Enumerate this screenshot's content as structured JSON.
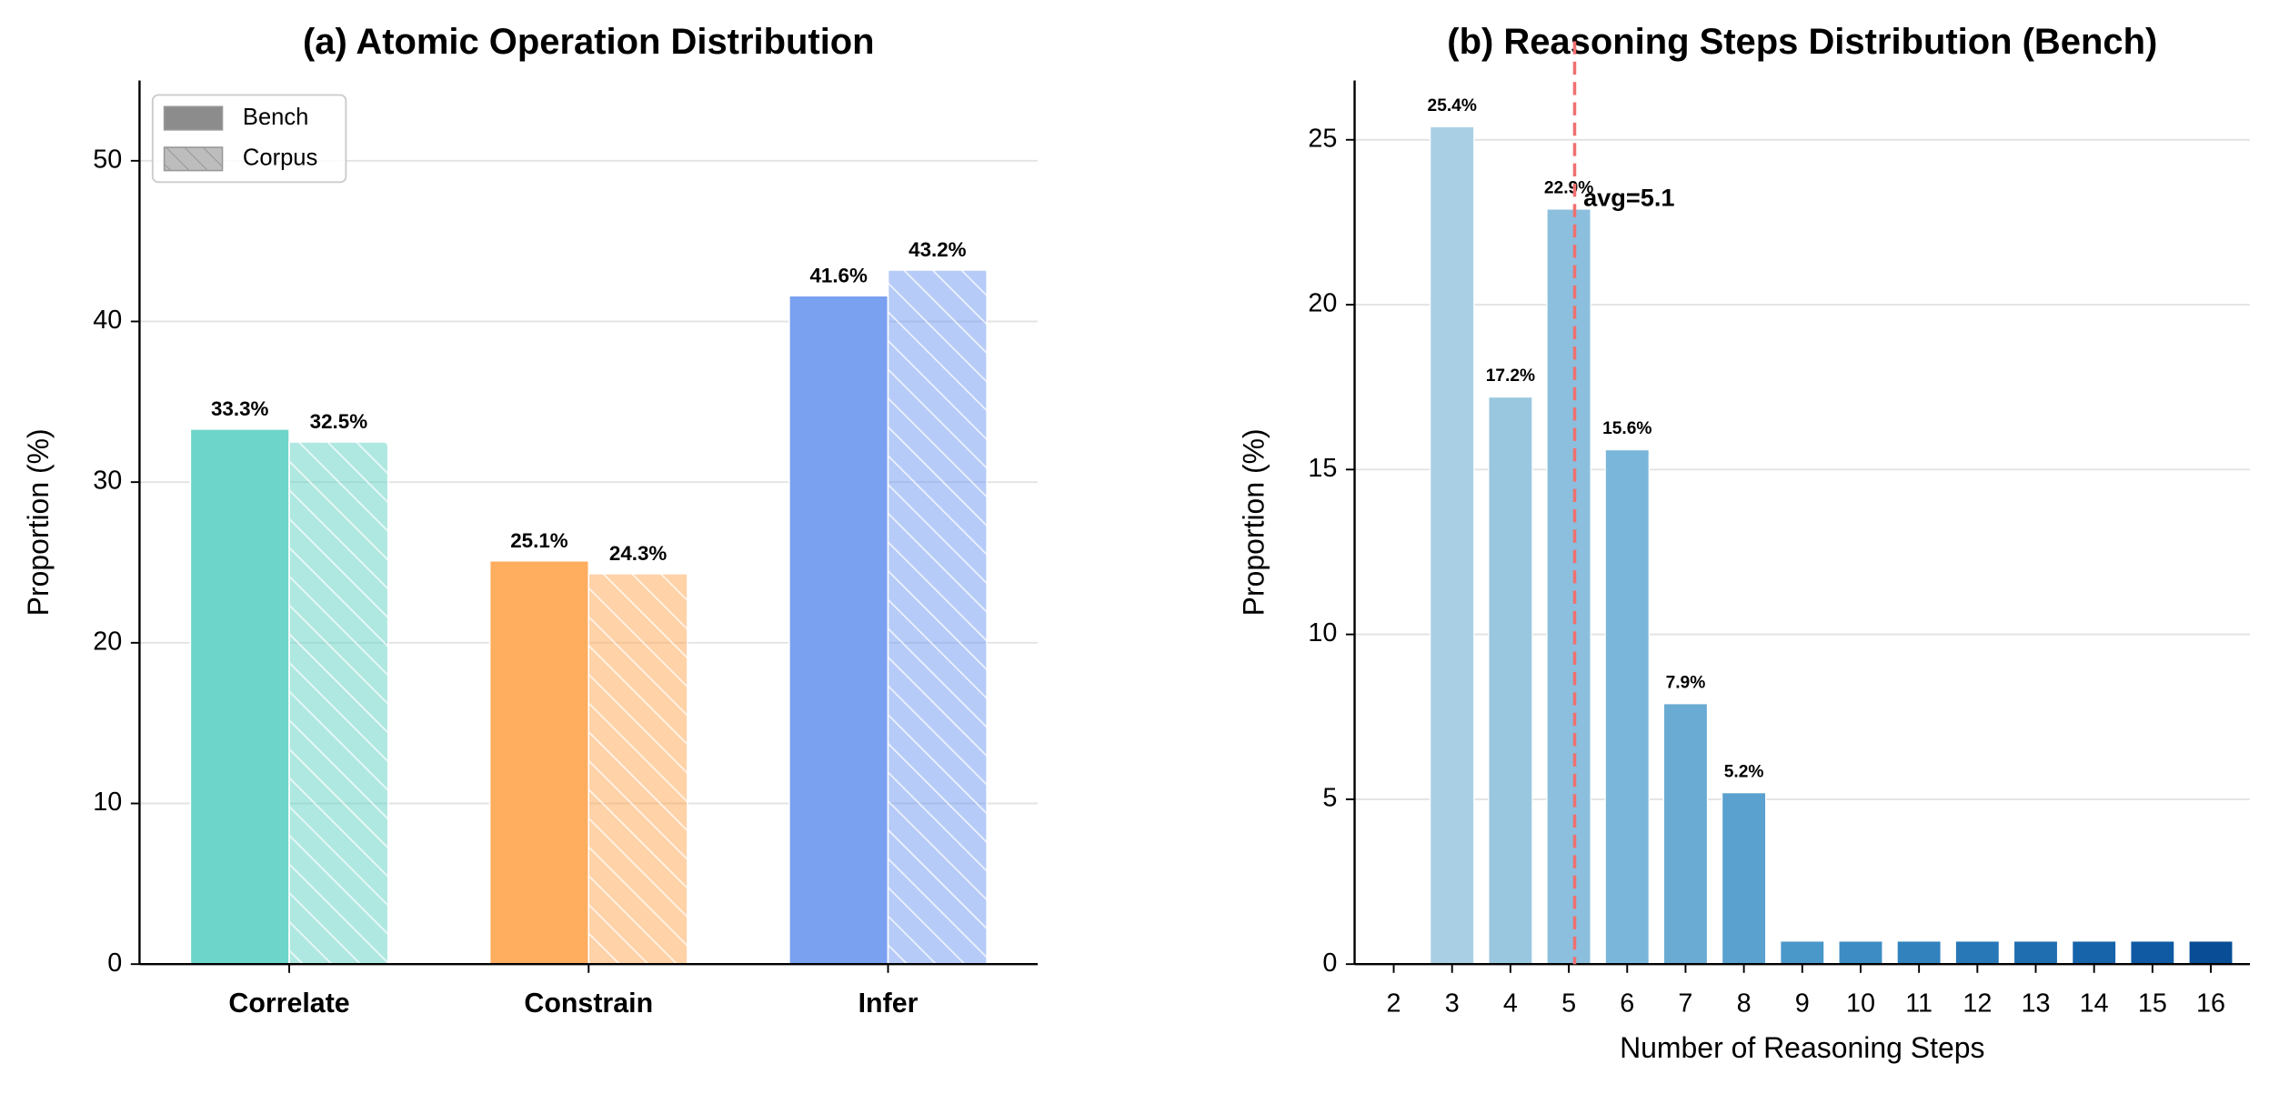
{
  "chart_data": [
    {
      "type": "grouped-bar",
      "title": "(a) Atomic Operation Distribution",
      "ylabel": "Proportion (%)",
      "categories": [
        "Correlate",
        "Constrain",
        "Infer"
      ],
      "category_colors": [
        "#6dd5c9",
        "#ffad5f",
        "#7aa0f0"
      ],
      "series": [
        {
          "name": "Bench",
          "values": [
            33.3,
            25.1,
            41.6
          ],
          "value_labels": [
            "33.3%",
            "25.1%",
            "41.6%"
          ],
          "color": "#8c8c8c"
        },
        {
          "name": "Corpus",
          "values": [
            32.5,
            24.3,
            43.2
          ],
          "value_labels": [
            "32.5%",
            "24.3%",
            "43.2%"
          ],
          "color": "#bdbdbd",
          "hatch": true
        }
      ],
      "ylim": [
        0,
        55
      ],
      "yticks": [
        0,
        10,
        20,
        30,
        40,
        50
      ],
      "grid": true,
      "legend": "upper left"
    },
    {
      "type": "bar",
      "title": "(b) Reasoning Steps Distribution (Bench)",
      "xlabel": "Number of Reasoning Steps",
      "ylabel": "Proportion (%)",
      "x": [
        2,
        3,
        4,
        5,
        6,
        7,
        8,
        9,
        10,
        11,
        12,
        13,
        14,
        15,
        16
      ],
      "values": [
        0.05,
        25.4,
        17.2,
        22.9,
        15.6,
        7.9,
        5.2,
        0.7,
        0.7,
        0.7,
        0.7,
        0.7,
        0.7,
        0.7,
        0.7
      ],
      "value_labels": [
        null,
        "25.4%",
        "17.2%",
        "22.9%",
        "15.6%",
        "7.9%",
        "5.2%",
        null,
        null,
        null,
        null,
        null,
        null,
        null,
        null
      ],
      "colors": [
        "#b7d7e8",
        "#a9cfe5",
        "#9ac7e0",
        "#8bbfdd",
        "#7ab6d9",
        "#69abd2",
        "#5aa1cf",
        "#4a97c9",
        "#3d8dc4",
        "#3282be",
        "#2878b8",
        "#1f6eb0",
        "#1764ab",
        "#0f5aa3",
        "#084d96"
      ],
      "xlim": [
        1.33,
        16.67
      ],
      "xticks": [
        2,
        3,
        4,
        5,
        6,
        7,
        8,
        9,
        10,
        11,
        12,
        13,
        14,
        15,
        16
      ],
      "ylim": [
        0,
        26.8
      ],
      "yticks": [
        0,
        5,
        10,
        15,
        20,
        25
      ],
      "grid": true,
      "avg": {
        "value": 5.1,
        "label": "avg=5.1",
        "color": "#f07070"
      }
    }
  ]
}
